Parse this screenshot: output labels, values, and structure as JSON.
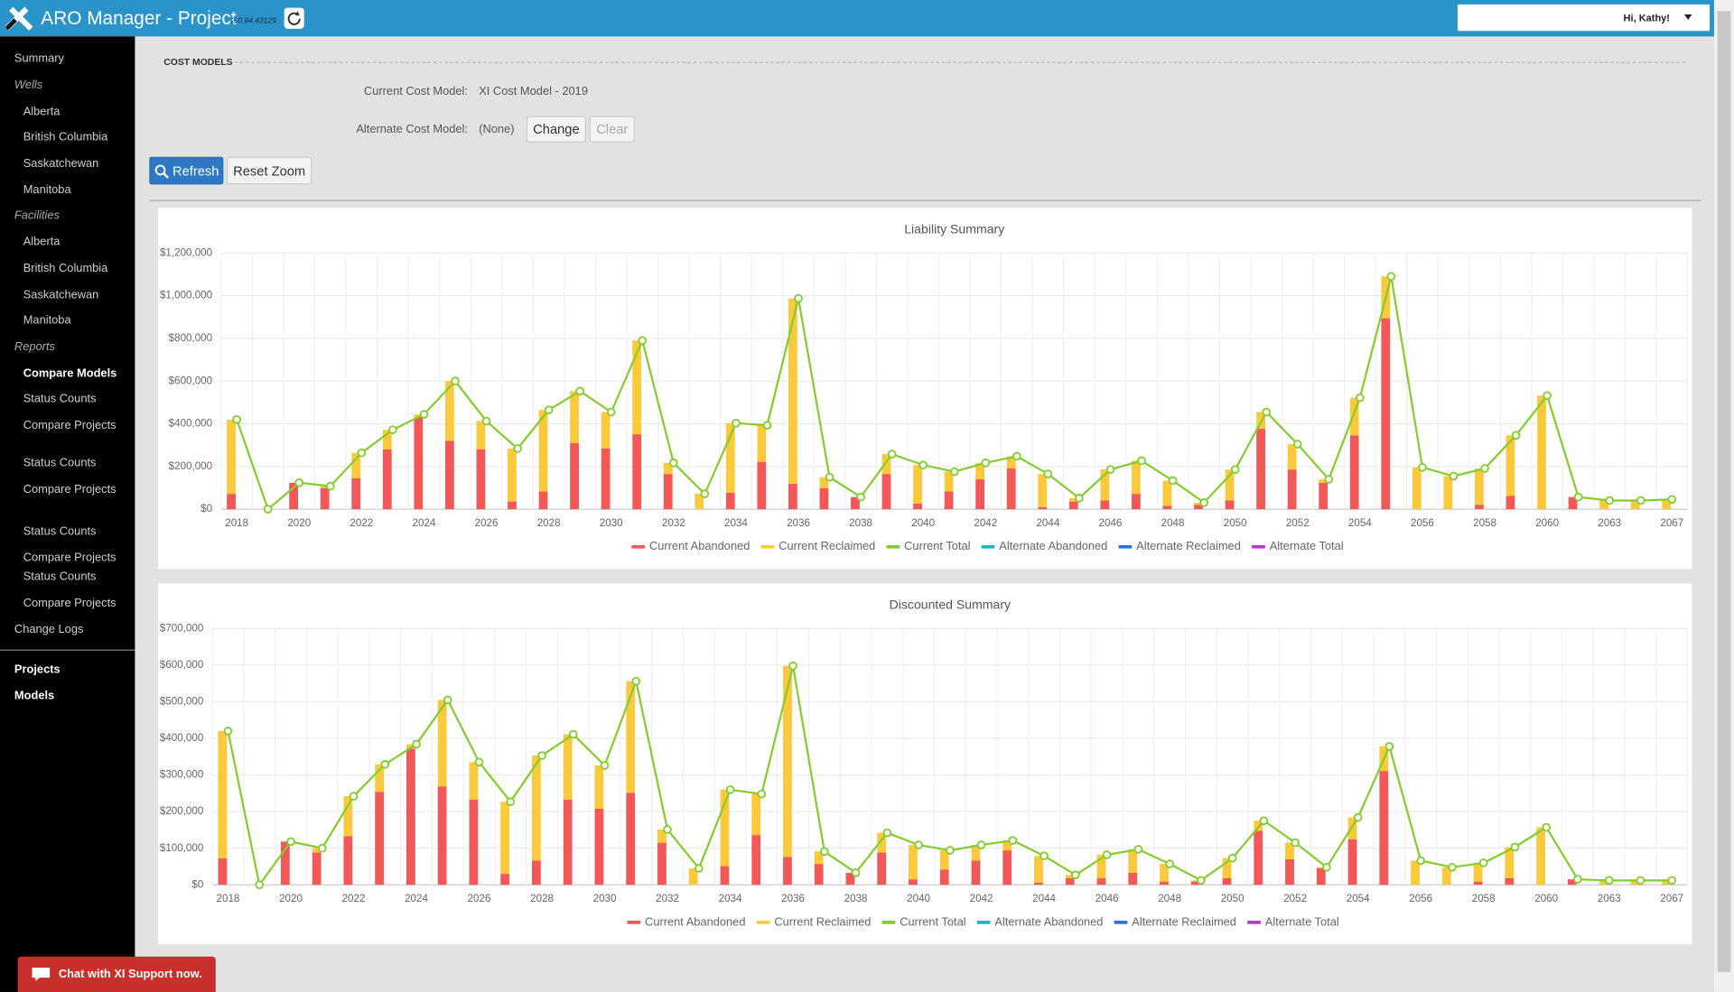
{
  "header": {
    "title": "ARO Manager - Project",
    "version": "2.0.94.43129",
    "user": "Hi, Kathy!"
  },
  "sidebar": {
    "items": [
      "Summary",
      "Wells",
      "Alberta",
      "British Columbia",
      "Saskatchewan",
      "Manitoba",
      "Facilities",
      "Alberta",
      "British Columbia",
      "Saskatchewan",
      "Manitoba",
      "Reports",
      "Compare Models",
      "Status Counts",
      "Compare Projects",
      "Status Counts",
      "Compare Projects",
      "Status Counts",
      "Compare Projects",
      "Status Counts",
      "Compare Projects",
      "Change Logs",
      "Projects",
      "Models"
    ]
  },
  "cost_models": {
    "heading": "COST MODELS",
    "current_label": "Current Cost Model:",
    "current_value": "XI Cost Model - 2019",
    "alternate_label": "Alternate Cost Model:",
    "alternate_value": "(None)",
    "change": "Change",
    "clear": "Clear"
  },
  "toolbar": {
    "refresh": "Refresh",
    "reset_zoom": "Reset Zoom"
  },
  "chat": "Chat with XI Support now.",
  "chart_data": [
    {
      "type": "bar",
      "stacked": true,
      "grid": true,
      "legend": "bottom",
      "title": "Liability Summary",
      "categories": [
        "2018",
        null,
        "2020",
        null,
        "2022",
        null,
        "2024",
        null,
        "2026",
        null,
        "2028",
        null,
        "2030",
        null,
        "2032",
        null,
        "2034",
        null,
        "2036",
        null,
        "2038",
        null,
        "2040",
        null,
        "2042",
        null,
        "2044",
        null,
        "2046",
        null,
        "2048",
        null,
        "2050",
        null,
        "2052",
        null,
        "2054",
        null,
        "2056",
        null,
        "2058",
        null,
        "2060",
        null,
        "2063",
        null,
        "2067"
      ],
      "ylim": [
        0,
        1200000
      ],
      "yticks": [
        {
          "value": 0,
          "label": "$0"
        },
        {
          "value": 200000,
          "label": "$200,000"
        },
        {
          "value": 400000,
          "label": "$400,000"
        },
        {
          "value": 600000,
          "label": "$600,000"
        },
        {
          "value": 800000,
          "label": "$800,000"
        },
        {
          "value": 1000000,
          "label": "$1,000,000"
        },
        {
          "value": 1200000,
          "label": "$1,200,000"
        }
      ],
      "series": [
        {
          "name": "Current Abandoned",
          "color": "#f25858",
          "values": [
            72000,
            0,
            124000,
            98000,
            145000,
            280000,
            430000,
            320000,
            280000,
            36000,
            83000,
            310000,
            284000,
            351000,
            165000,
            0,
            78000,
            222000,
            119000,
            98000,
            57000,
            165000,
            26000,
            83000,
            140000,
            191000,
            10000,
            36000,
            41000,
            72000,
            16000,
            21000,
            41000,
            377000,
            186000,
            124000,
            346000,
            894000,
            0,
            0,
            21000,
            62000,
            0,
            57000,
            0,
            0,
            0
          ]
        },
        {
          "name": "Current Reclaimed",
          "color": "#fbc93c",
          "values": [
            348000,
            0,
            0,
            10000,
            119000,
            92000,
            14000,
            280000,
            133000,
            248000,
            382000,
            243000,
            171000,
            439000,
            52000,
            72000,
            325000,
            171000,
            868000,
            52000,
            0,
            93000,
            181000,
            93000,
            77000,
            57000,
            155000,
            16000,
            145000,
            155000,
            118000,
            10000,
            145000,
            78000,
            119000,
            16000,
            176000,
            196000,
            196000,
            155000,
            170000,
            284000,
            532000,
            0,
            41000,
            41000,
            46000
          ]
        },
        {
          "name": "Current Total",
          "color": "#84cc2e",
          "type": "line",
          "values": [
            420000,
            0,
            124000,
            108000,
            264000,
            372000,
            444000,
            600000,
            413000,
            284000,
            465000,
            553000,
            455000,
            790000,
            217000,
            72000,
            403000,
            393000,
            987000,
            150000,
            57000,
            258000,
            207000,
            176000,
            217000,
            248000,
            165000,
            52000,
            186000,
            227000,
            134000,
            31000,
            186000,
            455000,
            305000,
            140000,
            522000,
            1090000,
            196000,
            155000,
            191000,
            346000,
            532000,
            57000,
            41000,
            41000,
            46000
          ]
        },
        {
          "name": "Alternate Abandoned",
          "color": "#20b4c8",
          "values": [
            null,
            null,
            null,
            null,
            null,
            null,
            null,
            null,
            null,
            null,
            null,
            null,
            null,
            null,
            null,
            null,
            null,
            null,
            null,
            null,
            null,
            null,
            null,
            null,
            null,
            null,
            null,
            null,
            null,
            null,
            null,
            null,
            null,
            null,
            null,
            null,
            null,
            null,
            null,
            null,
            null,
            null,
            null,
            null,
            null,
            null,
            null
          ]
        },
        {
          "name": "Alternate Reclaimed",
          "color": "#2f6fe0",
          "values": [
            null,
            null,
            null,
            null,
            null,
            null,
            null,
            null,
            null,
            null,
            null,
            null,
            null,
            null,
            null,
            null,
            null,
            null,
            null,
            null,
            null,
            null,
            null,
            null,
            null,
            null,
            null,
            null,
            null,
            null,
            null,
            null,
            null,
            null,
            null,
            null,
            null,
            null,
            null,
            null,
            null,
            null,
            null,
            null,
            null,
            null,
            null
          ]
        },
        {
          "name": "Alternate Total",
          "color": "#b23fc7",
          "type": "line",
          "values": [
            null,
            null,
            null,
            null,
            null,
            null,
            null,
            null,
            null,
            null,
            null,
            null,
            null,
            null,
            null,
            null,
            null,
            null,
            null,
            null,
            null,
            null,
            null,
            null,
            null,
            null,
            null,
            null,
            null,
            null,
            null,
            null,
            null,
            null,
            null,
            null,
            null,
            null,
            null,
            null,
            null,
            null,
            null,
            null,
            null,
            null,
            null
          ]
        }
      ]
    },
    {
      "type": "bar",
      "stacked": true,
      "grid": true,
      "legend": "bottom",
      "title": "Discounted Summary",
      "categories": [
        "2018",
        null,
        "2020",
        null,
        "2022",
        null,
        "2024",
        null,
        "2026",
        null,
        "2028",
        null,
        "2030",
        null,
        "2032",
        null,
        "2034",
        null,
        "2036",
        null,
        "2038",
        null,
        "2040",
        null,
        "2042",
        null,
        "2044",
        null,
        "2046",
        null,
        "2048",
        null,
        "2050",
        null,
        "2052",
        null,
        "2054",
        null,
        "2056",
        null,
        "2058",
        null,
        "2060",
        null,
        "2063",
        null,
        "2067"
      ],
      "ylim": [
        0,
        700000
      ],
      "yticks": [
        {
          "value": 0,
          "label": "$0"
        },
        {
          "value": 100000,
          "label": "$100,000"
        },
        {
          "value": 200000,
          "label": "$200,000"
        },
        {
          "value": 300000,
          "label": "$300,000"
        },
        {
          "value": 400000,
          "label": "$400,000"
        },
        {
          "value": 500000,
          "label": "$500,000"
        },
        {
          "value": 600000,
          "label": "$600,000"
        },
        {
          "value": 700000,
          "label": "$700,000"
        }
      ],
      "series": [
        {
          "name": "Current Abandoned",
          "color": "#f25858",
          "values": [
            72000,
            0,
            118000,
            88000,
            133000,
            254000,
            372000,
            269000,
            233000,
            30000,
            66000,
            233000,
            208000,
            251000,
            115000,
            0,
            51000,
            136000,
            76000,
            57000,
            33000,
            88000,
            15000,
            42000,
            66000,
            94000,
            6000,
            18000,
            18000,
            33000,
            9000,
            9000,
            18000,
            148000,
            70000,
            45000,
            124000,
            311000,
            0,
            0,
            9000,
            18000,
            0,
            15000,
            0,
            0,
            0
          ]
        },
        {
          "name": "Current Reclaimed",
          "color": "#fbc93c",
          "values": [
            348000,
            0,
            0,
            12000,
            109000,
            75000,
            12000,
            236000,
            102000,
            197000,
            287000,
            178000,
            118000,
            305000,
            36000,
            45000,
            209000,
            112000,
            522000,
            34000,
            0,
            54000,
            94000,
            52000,
            43000,
            27000,
            73000,
            9000,
            64000,
            64000,
            48000,
            3000,
            55000,
            27000,
            45000,
            3000,
            60000,
            67000,
            66000,
            48000,
            51000,
            85000,
            157000,
            0,
            12000,
            12000,
            12000
          ]
        },
        {
          "name": "Current Total",
          "color": "#84cc2e",
          "type": "line",
          "values": [
            420000,
            0,
            118000,
            100000,
            242000,
            329000,
            384000,
            505000,
            335000,
            227000,
            353000,
            411000,
            326000,
            556000,
            151000,
            45000,
            260000,
            248000,
            598000,
            91000,
            33000,
            142000,
            109000,
            94000,
            109000,
            121000,
            79000,
            27000,
            82000,
            97000,
            57000,
            12000,
            73000,
            175000,
            115000,
            48000,
            184000,
            378000,
            66000,
            48000,
            60000,
            103000,
            157000,
            15000,
            12000,
            12000,
            12000
          ]
        },
        {
          "name": "Alternate Abandoned",
          "color": "#20b4c8",
          "values": [
            null,
            null,
            null,
            null,
            null,
            null,
            null,
            null,
            null,
            null,
            null,
            null,
            null,
            null,
            null,
            null,
            null,
            null,
            null,
            null,
            null,
            null,
            null,
            null,
            null,
            null,
            null,
            null,
            null,
            null,
            null,
            null,
            null,
            null,
            null,
            null,
            null,
            null,
            null,
            null,
            null,
            null,
            null,
            null,
            null,
            null,
            null
          ]
        },
        {
          "name": "Alternate Reclaimed",
          "color": "#2f6fe0",
          "values": [
            null,
            null,
            null,
            null,
            null,
            null,
            null,
            null,
            null,
            null,
            null,
            null,
            null,
            null,
            null,
            null,
            null,
            null,
            null,
            null,
            null,
            null,
            null,
            null,
            null,
            null,
            null,
            null,
            null,
            null,
            null,
            null,
            null,
            null,
            null,
            null,
            null,
            null,
            null,
            null,
            null,
            null,
            null,
            null,
            null,
            null,
            null
          ]
        },
        {
          "name": "Alternate Total",
          "color": "#b23fc7",
          "type": "line",
          "values": [
            null,
            null,
            null,
            null,
            null,
            null,
            null,
            null,
            null,
            null,
            null,
            null,
            null,
            null,
            null,
            null,
            null,
            null,
            null,
            null,
            null,
            null,
            null,
            null,
            null,
            null,
            null,
            null,
            null,
            null,
            null,
            null,
            null,
            null,
            null,
            null,
            null,
            null,
            null,
            null,
            null,
            null,
            null,
            null,
            null,
            null,
            null
          ]
        }
      ]
    }
  ]
}
